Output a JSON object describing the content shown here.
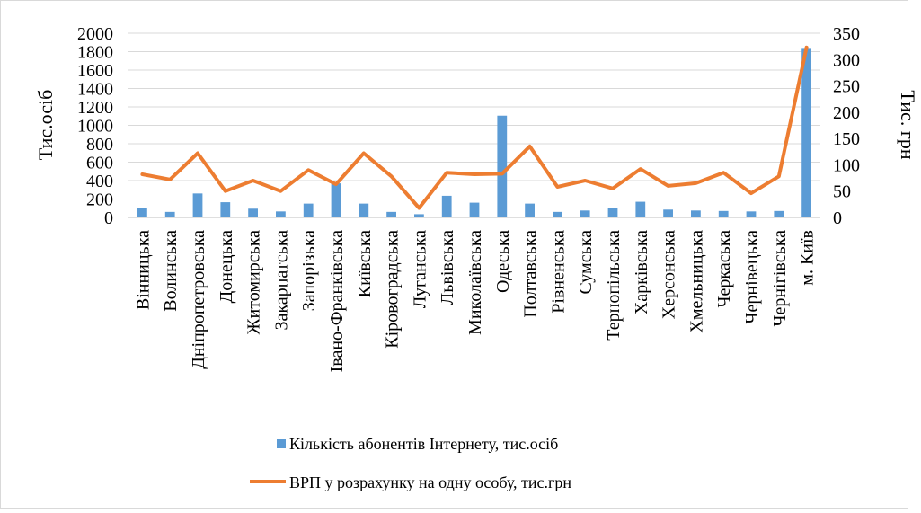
{
  "chart_data": {
    "type": "bar",
    "categories": [
      "Вінницька",
      "Волинська",
      "Дніпропетровська",
      "Донецька",
      "Житомирська",
      "Закарпатська",
      "Запорізька",
      "Івано-Франківська",
      "Київська",
      "Кіровоградська",
      "Луганська",
      "Львівська",
      "Миколаївська",
      "Одеська",
      "Полтавська",
      "Рівненська",
      "Сумська",
      "Тернопільська",
      "Харківська",
      "Херсонська",
      "Хмельницька",
      "Черкаська",
      "Чернівецька",
      "Чернігівська",
      "м. Київ"
    ],
    "series": [
      {
        "name": "Кількість абонентів Інтернету, тис.осіб",
        "type": "bar",
        "axis": "left",
        "color": "#5b9bd5",
        "values": [
          100,
          60,
          260,
          165,
          95,
          65,
          150,
          370,
          150,
          60,
          35,
          235,
          160,
          1105,
          150,
          60,
          75,
          100,
          170,
          85,
          75,
          70,
          65,
          70,
          1840
        ]
      },
      {
        "name": "ВРП у розрахунку на одну особу, тис.грн",
        "type": "line",
        "axis": "right",
        "color": "#ed7d31",
        "values": [
          82,
          72,
          122,
          50,
          70,
          50,
          90,
          63,
          122,
          78,
          18,
          85,
          82,
          83,
          135,
          58,
          70,
          55,
          92,
          60,
          65,
          85,
          46,
          78,
          323
        ]
      }
    ],
    "y_left": {
      "label": "Тис.осіб",
      "min": 0,
      "max": 2000,
      "ticks": [
        0,
        200,
        400,
        600,
        800,
        1000,
        1200,
        1400,
        1600,
        1800,
        2000
      ]
    },
    "y_right": {
      "label": "Тис. грн",
      "min": 0,
      "max": 350,
      "ticks": [
        0,
        50,
        100,
        150,
        200,
        250,
        300,
        350
      ]
    },
    "grid": true,
    "legend_position": "bottom"
  }
}
